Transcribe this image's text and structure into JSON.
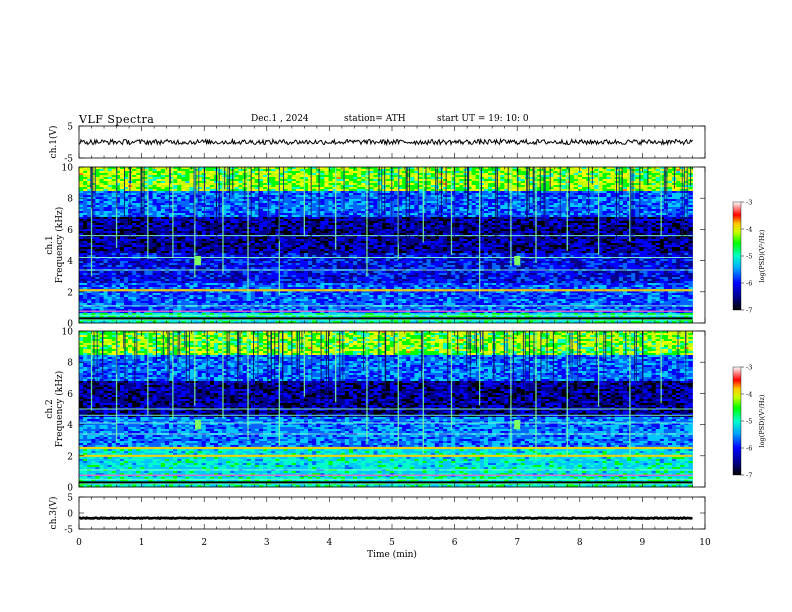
{
  "header": {
    "title": "VLF  Spectra",
    "date": "Dec.1  , 2024",
    "station": "station= ATH",
    "start": "start  UT  =    19: 10: 0"
  },
  "colors": {
    "spectrogram_scale": [
      "#000000",
      "#00008b",
      "#0000ff",
      "#0064ff",
      "#00c8ff",
      "#00ffc8",
      "#00ff00",
      "#c8ff00",
      "#ffff00",
      "#ff8000",
      "#ff0000",
      "#ffffff"
    ],
    "trace": "#000000"
  },
  "chart_data": [
    {
      "type": "line",
      "ylabel": "ch.1(V)",
      "ylim": [
        -5,
        5
      ],
      "yticks": [
        "5",
        "-5"
      ],
      "xlim": [
        0,
        10
      ],
      "series": [
        {
          "noise_amplitude_V": 0.8,
          "mean_V": 0
        }
      ]
    },
    {
      "type": "heatmap",
      "ylabel": "ch.1\nFrequency  (kHz)",
      "ylim": [
        0,
        10
      ],
      "yticks": [
        "0",
        "2",
        "4",
        "6",
        "8",
        "10"
      ],
      "xlim": [
        0,
        10
      ],
      "colorbar": {
        "label": "log(PSD)(V²/Hz)",
        "range": [
          -7,
          -3
        ],
        "ticks": [
          "-3",
          "-4",
          "-5",
          "-6",
          "-7"
        ]
      },
      "features": {
        "sferic_times_min": [
          0.2,
          0.6,
          1.1,
          1.5,
          1.85,
          2.3,
          2.7,
          3.2,
          3.6,
          4.1,
          4.6,
          5.1,
          5.5,
          5.95,
          6.4,
          6.9,
          7.3,
          7.8,
          8.3,
          8.8,
          9.3
        ],
        "tone_lines_kHz": [
          0.2,
          0.5,
          1.1,
          2.1,
          3.4,
          4.2,
          5.6
        ]
      }
    },
    {
      "type": "heatmap",
      "ylabel": "ch.2\nFrequency  (kHz)",
      "ylim": [
        0,
        10
      ],
      "yticks": [
        "0",
        "2",
        "4",
        "6",
        "8",
        "10"
      ],
      "xlim": [
        0,
        10
      ],
      "colorbar": {
        "label": "log(PSD)(V²/Hz)",
        "range": [
          -7,
          -3
        ],
        "ticks": [
          "-3",
          "-4",
          "-5",
          "-6",
          "-7"
        ]
      },
      "features": {
        "sferic_times_min": [
          0.2,
          0.6,
          1.1,
          1.5,
          1.85,
          2.3,
          2.7,
          3.2,
          3.6,
          4.1,
          4.6,
          5.1,
          5.5,
          5.95,
          6.4,
          6.9,
          7.3,
          7.8,
          8.3,
          8.8,
          9.3
        ],
        "tone_lines_kHz": [
          0.2,
          0.5,
          1.1,
          2.0,
          2.5,
          3.4,
          4.1,
          4.6,
          5.0
        ]
      }
    },
    {
      "type": "line",
      "ylabel": "ch.3(V)",
      "ylim": [
        -5,
        5
      ],
      "yticks": [
        "5",
        "0",
        "-5"
      ],
      "xlim": [
        0,
        10
      ],
      "series": [
        {
          "mean_V": -1.6,
          "noise_amplitude_V": 0.15
        }
      ]
    }
  ],
  "xaxis": {
    "label": "Time  (min)",
    "ticks": [
      "0",
      "1",
      "2",
      "3",
      "4",
      "5",
      "6",
      "7",
      "8",
      "9",
      "10"
    ],
    "data_end_min": 9.8
  }
}
